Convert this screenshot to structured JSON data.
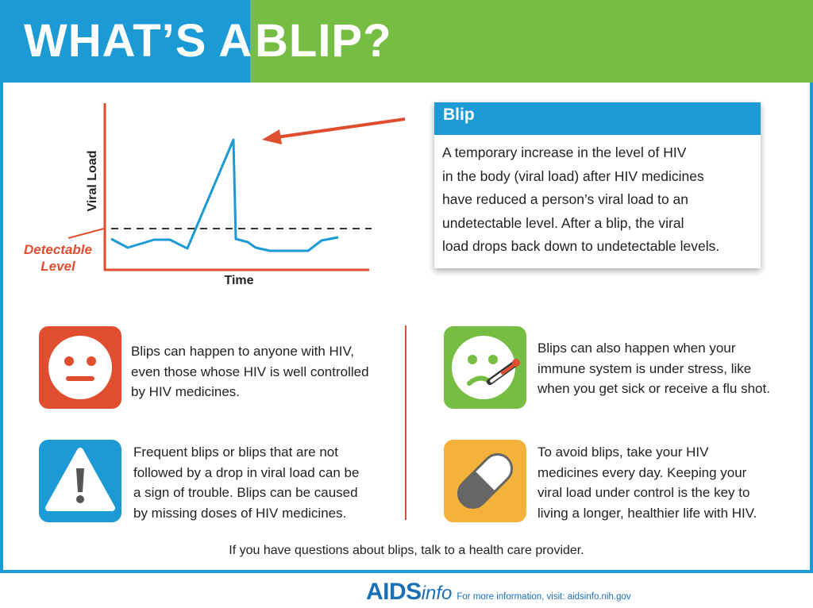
{
  "header": {
    "title_part1": "WHAT’S A",
    "title_part2": "BLIP?"
  },
  "chart_labels": {
    "y_axis": "Viral Load",
    "x_axis": "Time",
    "detectable_line1": "Detectable",
    "detectable_line2": "Level"
  },
  "definition": {
    "heading": "Blip",
    "lines": [
      "A temporary increase in the level of HIV",
      "in the body (viral load) after HIV medicines",
      "have reduced a person’s viral load to an",
      "undetectable level. After a blip, the viral",
      "load drops back down to undetectable levels."
    ]
  },
  "points": [
    {
      "icon": "neutral-face-icon",
      "lines": [
        "Blips can happen to anyone with HIV,",
        "even those whose HIV is well controlled",
        "by HIV medicines."
      ]
    },
    {
      "icon": "sick-face-thermometer-icon",
      "lines": [
        "Blips can also happen when your",
        "immune system is under stress, like",
        "when you get sick or receive a flu shot."
      ]
    },
    {
      "icon": "warning-icon",
      "lines": [
        "Frequent blips or blips that are not",
        "followed by a drop in viral load can be",
        "a sign of trouble. Blips can be caused",
        "by missing doses of HIV medicines."
      ]
    },
    {
      "icon": "pill-icon",
      "lines": [
        "To avoid blips, take your HIV",
        "medicines every day. Keeping your",
        "viral load under control is the key to",
        "living a longer, healthier life with HIV."
      ]
    }
  ],
  "colors": {
    "blue": "#1b9ad6",
    "green": "#76bd43",
    "orange": "#e04e2f",
    "yellow": "#f4b23a"
  },
  "footer": {
    "question": "If you have questions about blips, talk to a health care provider.",
    "logo_main": "AIDS",
    "logo_sub": "info",
    "more_info": "For more information, visit: aidsinfo.nih.gov"
  }
}
